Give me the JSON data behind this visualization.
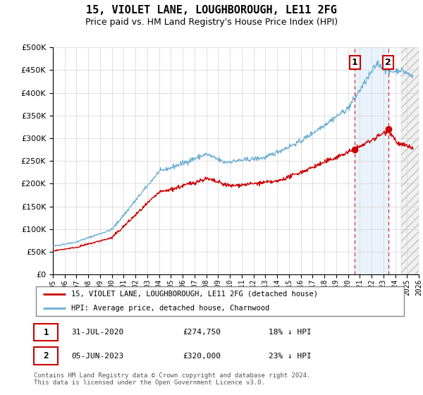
{
  "title": "15, VIOLET LANE, LOUGHBOROUGH, LE11 2FG",
  "subtitle": "Price paid vs. HM Land Registry's House Price Index (HPI)",
  "legend_line1": "15, VIOLET LANE, LOUGHBOROUGH, LE11 2FG (detached house)",
  "legend_line2": "HPI: Average price, detached house, Charnwood",
  "annotation1_date": "31-JUL-2020",
  "annotation1_price": "£274,750",
  "annotation1_hpi": "18% ↓ HPI",
  "annotation2_date": "05-JUN-2023",
  "annotation2_price": "£320,000",
  "annotation2_hpi": "23% ↓ HPI",
  "footer": "Contains HM Land Registry data © Crown copyright and database right 2024.\nThis data is licensed under the Open Government Licence v3.0.",
  "hpi_color": "#6baed6",
  "hpi_fill_color": "#d6e9f8",
  "price_color": "#cc0000",
  "annotation_color": "#cc0000",
  "marker1_x": 2020.58,
  "marker1_y": 274750,
  "marker2_x": 2023.42,
  "marker2_y": 320000,
  "xmin": 1995,
  "xmax": 2026,
  "ymin": 0,
  "ymax": 500000,
  "yticks": [
    0,
    50000,
    100000,
    150000,
    200000,
    250000,
    300000,
    350000,
    400000,
    450000,
    500000
  ],
  "hatch_start": 2024.5
}
